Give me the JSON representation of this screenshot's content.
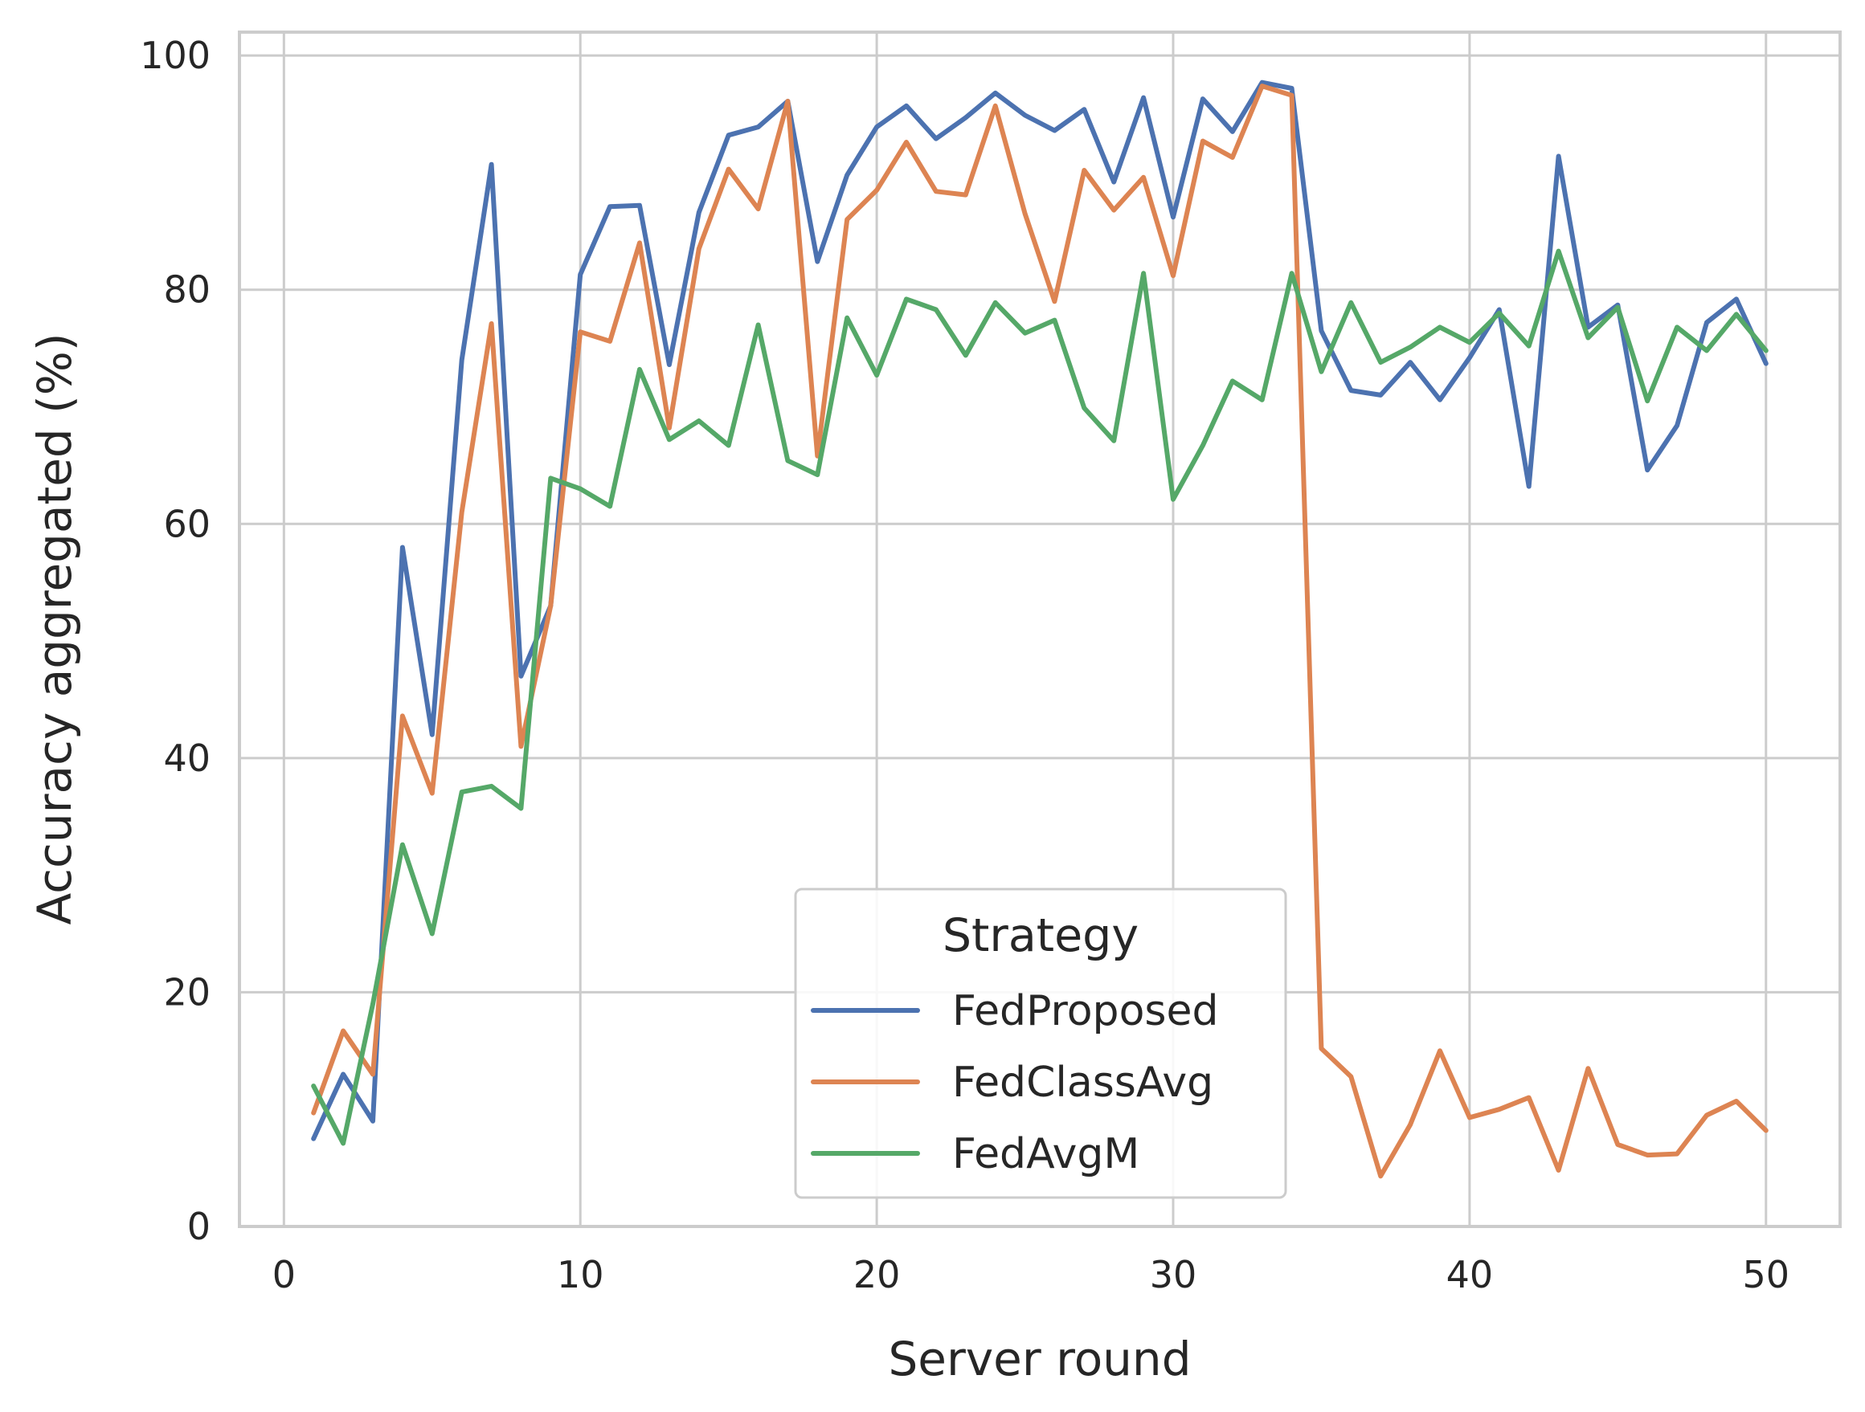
{
  "chart_data": {
    "type": "line",
    "title": "",
    "xlabel": "Server round",
    "ylabel": "Accuracy aggregated (%)",
    "xlim": [
      -1.5,
      52.5
    ],
    "ylim": [
      0,
      102
    ],
    "xticks": [
      0,
      10,
      20,
      30,
      40,
      50
    ],
    "yticks": [
      0,
      20,
      40,
      60,
      80,
      100
    ],
    "grid": true,
    "legend": {
      "title": "Strategy",
      "placement": "lower-center"
    },
    "x": [
      1,
      2,
      3,
      4,
      5,
      6,
      7,
      8,
      9,
      10,
      11,
      12,
      13,
      14,
      15,
      16,
      17,
      18,
      19,
      20,
      21,
      22,
      23,
      24,
      25,
      26,
      27,
      28,
      29,
      30,
      31,
      32,
      33,
      34,
      35,
      36,
      37,
      38,
      39,
      40,
      41,
      42,
      43,
      44,
      45,
      46,
      47,
      48,
      49,
      50
    ],
    "series": [
      {
        "name": "FedProposed",
        "color": "#4c72b0",
        "values": [
          7.5,
          13,
          9,
          58,
          42,
          74,
          90.7,
          47,
          53,
          81.3,
          87.1,
          87.2,
          73.6,
          86.6,
          93.2,
          93.9,
          96.1,
          82.4,
          89.8,
          93.9,
          95.7,
          92.9,
          94.7,
          96.8,
          94.9,
          93.6,
          95.4,
          89.2,
          96.4,
          86.2,
          96.3,
          93.5,
          97.7,
          97.2,
          76.5,
          71.4,
          71,
          73.8,
          70.6,
          74.2,
          78.3,
          63.2,
          91.4,
          76.8,
          78.7,
          64.6,
          68.4,
          77.2,
          79.2,
          73.7
        ]
      },
      {
        "name": "FedClassAvg",
        "color": "#dd8452",
        "values": [
          9.7,
          16.7,
          13,
          43.6,
          37,
          61,
          77.1,
          41,
          53,
          76.4,
          75.6,
          84,
          68.2,
          83.5,
          90.3,
          86.9,
          96.1,
          65.8,
          86,
          88.5,
          92.6,
          88.4,
          88.1,
          95.7,
          86.5,
          79,
          90.2,
          86.8,
          89.6,
          81.2,
          92.7,
          91.3,
          97.4,
          96.6,
          15.2,
          12.8,
          4.3,
          8.7,
          15,
          9.3,
          10,
          11,
          4.8,
          13.5,
          7,
          6.1,
          6.2,
          9.5,
          10.7,
          8.2
        ]
      },
      {
        "name": "FedAvgM",
        "color": "#55a868",
        "values": [
          12,
          7.1,
          19,
          32.6,
          25,
          37.1,
          37.6,
          35.7,
          63.9,
          63,
          61.5,
          73.2,
          67.2,
          68.8,
          66.7,
          77,
          65.4,
          64.2,
          77.6,
          72.7,
          79.2,
          78.3,
          74.4,
          78.9,
          76.3,
          77.4,
          69.9,
          67.1,
          81.4,
          62.1,
          66.7,
          72.2,
          70.6,
          81.4,
          73,
          78.9,
          73.8,
          75.1,
          76.8,
          75.5,
          78,
          75.2,
          83.3,
          75.9,
          78.5,
          70.5,
          76.8,
          74.8,
          77.9,
          74.8
        ]
      }
    ]
  }
}
